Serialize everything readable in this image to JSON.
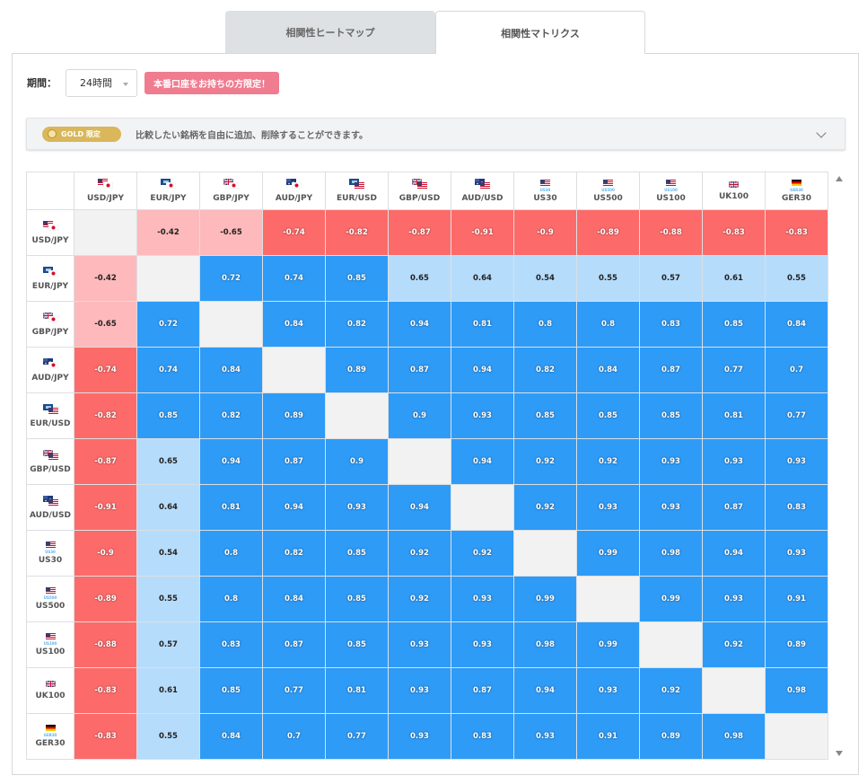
{
  "tabs": [
    {
      "label": "相関性ヒートマップ",
      "active": false
    },
    {
      "label": "相関性マトリクス",
      "active": true
    }
  ],
  "period": {
    "label": "期間：",
    "selected": "24時間"
  },
  "badge": "本番口座をお持ちの方限定！",
  "gold": {
    "pill": "GOLD 限定",
    "text": "比較したい銘柄を自由に追加、削除することができます。"
  },
  "colors": {
    "strong_pos": "#2e9bf7",
    "weak_pos": "#b6dcfb",
    "strong_neg": "#fc6b6a",
    "weak_neg": "#fdb9bb",
    "diag": "#f2f2f2"
  },
  "symbols": [
    {
      "label": "USD/JPY",
      "flags": [
        "us",
        "jp"
      ]
    },
    {
      "label": "EUR/JPY",
      "flags": [
        "eu",
        "jp"
      ]
    },
    {
      "label": "GBP/JPY",
      "flags": [
        "gb",
        "jp"
      ]
    },
    {
      "label": "AUD/JPY",
      "flags": [
        "au",
        "jp"
      ]
    },
    {
      "label": "EUR/USD",
      "flags": [
        "eu",
        "us"
      ]
    },
    {
      "label": "GBP/USD",
      "flags": [
        "gb",
        "us"
      ]
    },
    {
      "label": "AUD/USD",
      "flags": [
        "au",
        "us"
      ]
    },
    {
      "label": "US30",
      "flags": [
        "us"
      ],
      "sub": "US30"
    },
    {
      "label": "US500",
      "flags": [
        "us"
      ],
      "sub": "US500"
    },
    {
      "label": "US100",
      "flags": [
        "us"
      ],
      "sub": "US100"
    },
    {
      "label": "UK100",
      "flags": [
        "gb"
      ],
      "sub": ""
    },
    {
      "label": "GER30",
      "flags": [
        "de"
      ],
      "sub": "GER30"
    }
  ],
  "matrix": [
    [
      null,
      "-0.42",
      "-0.65",
      "-0.74",
      "-0.82",
      "-0.87",
      "-0.91",
      "-0.9",
      "-0.89",
      "-0.88",
      "-0.83",
      "-0.83"
    ],
    [
      "-0.42",
      null,
      "0.72",
      "0.74",
      "0.85",
      "0.65",
      "0.64",
      "0.54",
      "0.55",
      "0.57",
      "0.61",
      "0.55"
    ],
    [
      "-0.65",
      "0.72",
      null,
      "0.84",
      "0.82",
      "0.94",
      "0.81",
      "0.8",
      "0.8",
      "0.83",
      "0.85",
      "0.84"
    ],
    [
      "-0.74",
      "0.74",
      "0.84",
      null,
      "0.89",
      "0.87",
      "0.94",
      "0.82",
      "0.84",
      "0.87",
      "0.77",
      "0.7"
    ],
    [
      "-0.82",
      "0.85",
      "0.82",
      "0.89",
      null,
      "0.9",
      "0.93",
      "0.85",
      "0.85",
      "0.85",
      "0.81",
      "0.77"
    ],
    [
      "-0.87",
      "0.65",
      "0.94",
      "0.87",
      "0.9",
      null,
      "0.94",
      "0.92",
      "0.92",
      "0.93",
      "0.93",
      "0.93"
    ],
    [
      "-0.91",
      "0.64",
      "0.81",
      "0.94",
      "0.93",
      "0.94",
      null,
      "0.92",
      "0.93",
      "0.93",
      "0.87",
      "0.83"
    ],
    [
      "-0.9",
      "0.54",
      "0.8",
      "0.82",
      "0.85",
      "0.92",
      "0.92",
      null,
      "0.99",
      "0.98",
      "0.94",
      "0.93"
    ],
    [
      "-0.89",
      "0.55",
      "0.8",
      "0.84",
      "0.85",
      "0.92",
      "0.93",
      "0.99",
      null,
      "0.99",
      "0.93",
      "0.91"
    ],
    [
      "-0.88",
      "0.57",
      "0.83",
      "0.87",
      "0.85",
      "0.93",
      "0.93",
      "0.98",
      "0.99",
      null,
      "0.92",
      "0.89"
    ],
    [
      "-0.83",
      "0.61",
      "0.85",
      "0.77",
      "0.81",
      "0.93",
      "0.87",
      "0.94",
      "0.93",
      "0.92",
      null,
      "0.98"
    ],
    [
      "-0.83",
      "0.55",
      "0.84",
      "0.7",
      "0.77",
      "0.93",
      "0.83",
      "0.93",
      "0.91",
      "0.89",
      "0.98",
      null
    ]
  ]
}
